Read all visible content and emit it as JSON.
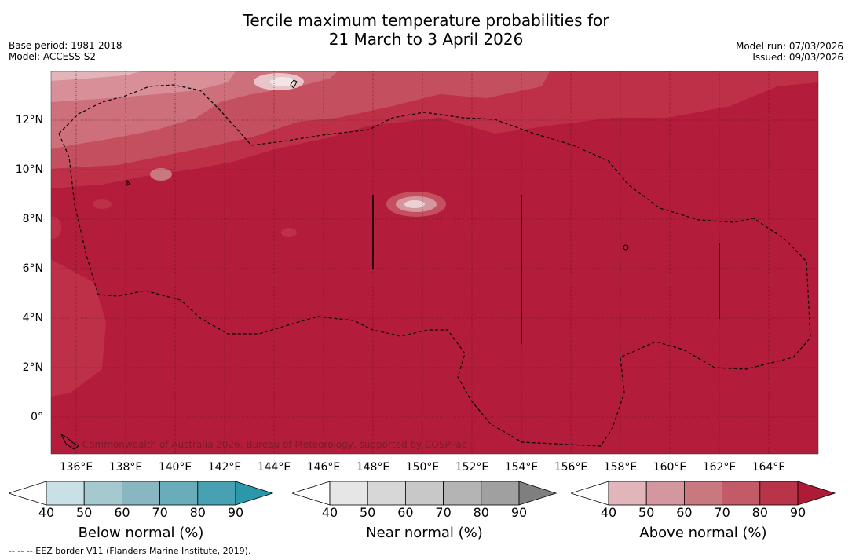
{
  "title": {
    "line1": "Tercile maximum temperature probabilities for",
    "line2": "21 March to 3 April 2026"
  },
  "meta": {
    "base_period": "Base period: 1981-2018",
    "model": "Model: ACCESS-S2",
    "model_run": "Model run: 07/03/2026",
    "issued": "Issued: 09/03/2026"
  },
  "map": {
    "latitudes": [
      {
        "value": 12,
        "label": "12°N"
      },
      {
        "value": 10,
        "label": "10°N"
      },
      {
        "value": 8,
        "label": "8°N"
      },
      {
        "value": 6,
        "label": "6°N"
      },
      {
        "value": 4,
        "label": "4°N"
      },
      {
        "value": 2,
        "label": "2°N"
      },
      {
        "value": 0,
        "label": "0°"
      }
    ],
    "longitudes": [
      {
        "value": 136,
        "label": "136°E"
      },
      {
        "value": 138,
        "label": "138°E"
      },
      {
        "value": 140,
        "label": "140°E"
      },
      {
        "value": 142,
        "label": "142°E"
      },
      {
        "value": 144,
        "label": "144°E"
      },
      {
        "value": 146,
        "label": "146°E"
      },
      {
        "value": 148,
        "label": "148°E"
      },
      {
        "value": 150,
        "label": "150°E"
      },
      {
        "value": 152,
        "label": "152°E"
      },
      {
        "value": 154,
        "label": "154°E"
      },
      {
        "value": 156,
        "label": "156°E"
      },
      {
        "value": 158,
        "label": "158°E"
      },
      {
        "value": 160,
        "label": "160°E"
      },
      {
        "value": 162,
        "label": "162°E"
      },
      {
        "value": 164,
        "label": "164°E"
      }
    ],
    "dominant_category": "Above normal",
    "dominant_probability": 90,
    "copyright": "© Commonwealth of Australia 2026, Bureau of Meteorology, supported by COSPPac"
  },
  "legends": [
    {
      "id": "below",
      "title": "Below normal (%)",
      "ticks": [
        "40",
        "50",
        "60",
        "70",
        "80",
        "90"
      ],
      "colors": [
        "#ffffff",
        "#c8e0e6",
        "#a6c8cf",
        "#88b7c2",
        "#69acba",
        "#48a1b2",
        "#2a97ab"
      ]
    },
    {
      "id": "near",
      "title": "Near normal (%)",
      "ticks": [
        "40",
        "50",
        "60",
        "70",
        "80",
        "90"
      ],
      "colors": [
        "#ffffff",
        "#e6e6e6",
        "#d7d7d7",
        "#c8c8c8",
        "#b4b4b4",
        "#a0a0a0",
        "#7f7f7f"
      ]
    },
    {
      "id": "above",
      "title": "Above normal (%)",
      "ticks": [
        "40",
        "50",
        "60",
        "70",
        "80",
        "90"
      ],
      "colors": [
        "#ffffff",
        "#e1b5ba",
        "#d5979f",
        "#c97880",
        "#c25a67",
        "#b83449",
        "#ad1b36"
      ]
    }
  ],
  "footnote": "--  --  -- EEZ border V11 (Flanders Marine Institute, 2019)."
}
